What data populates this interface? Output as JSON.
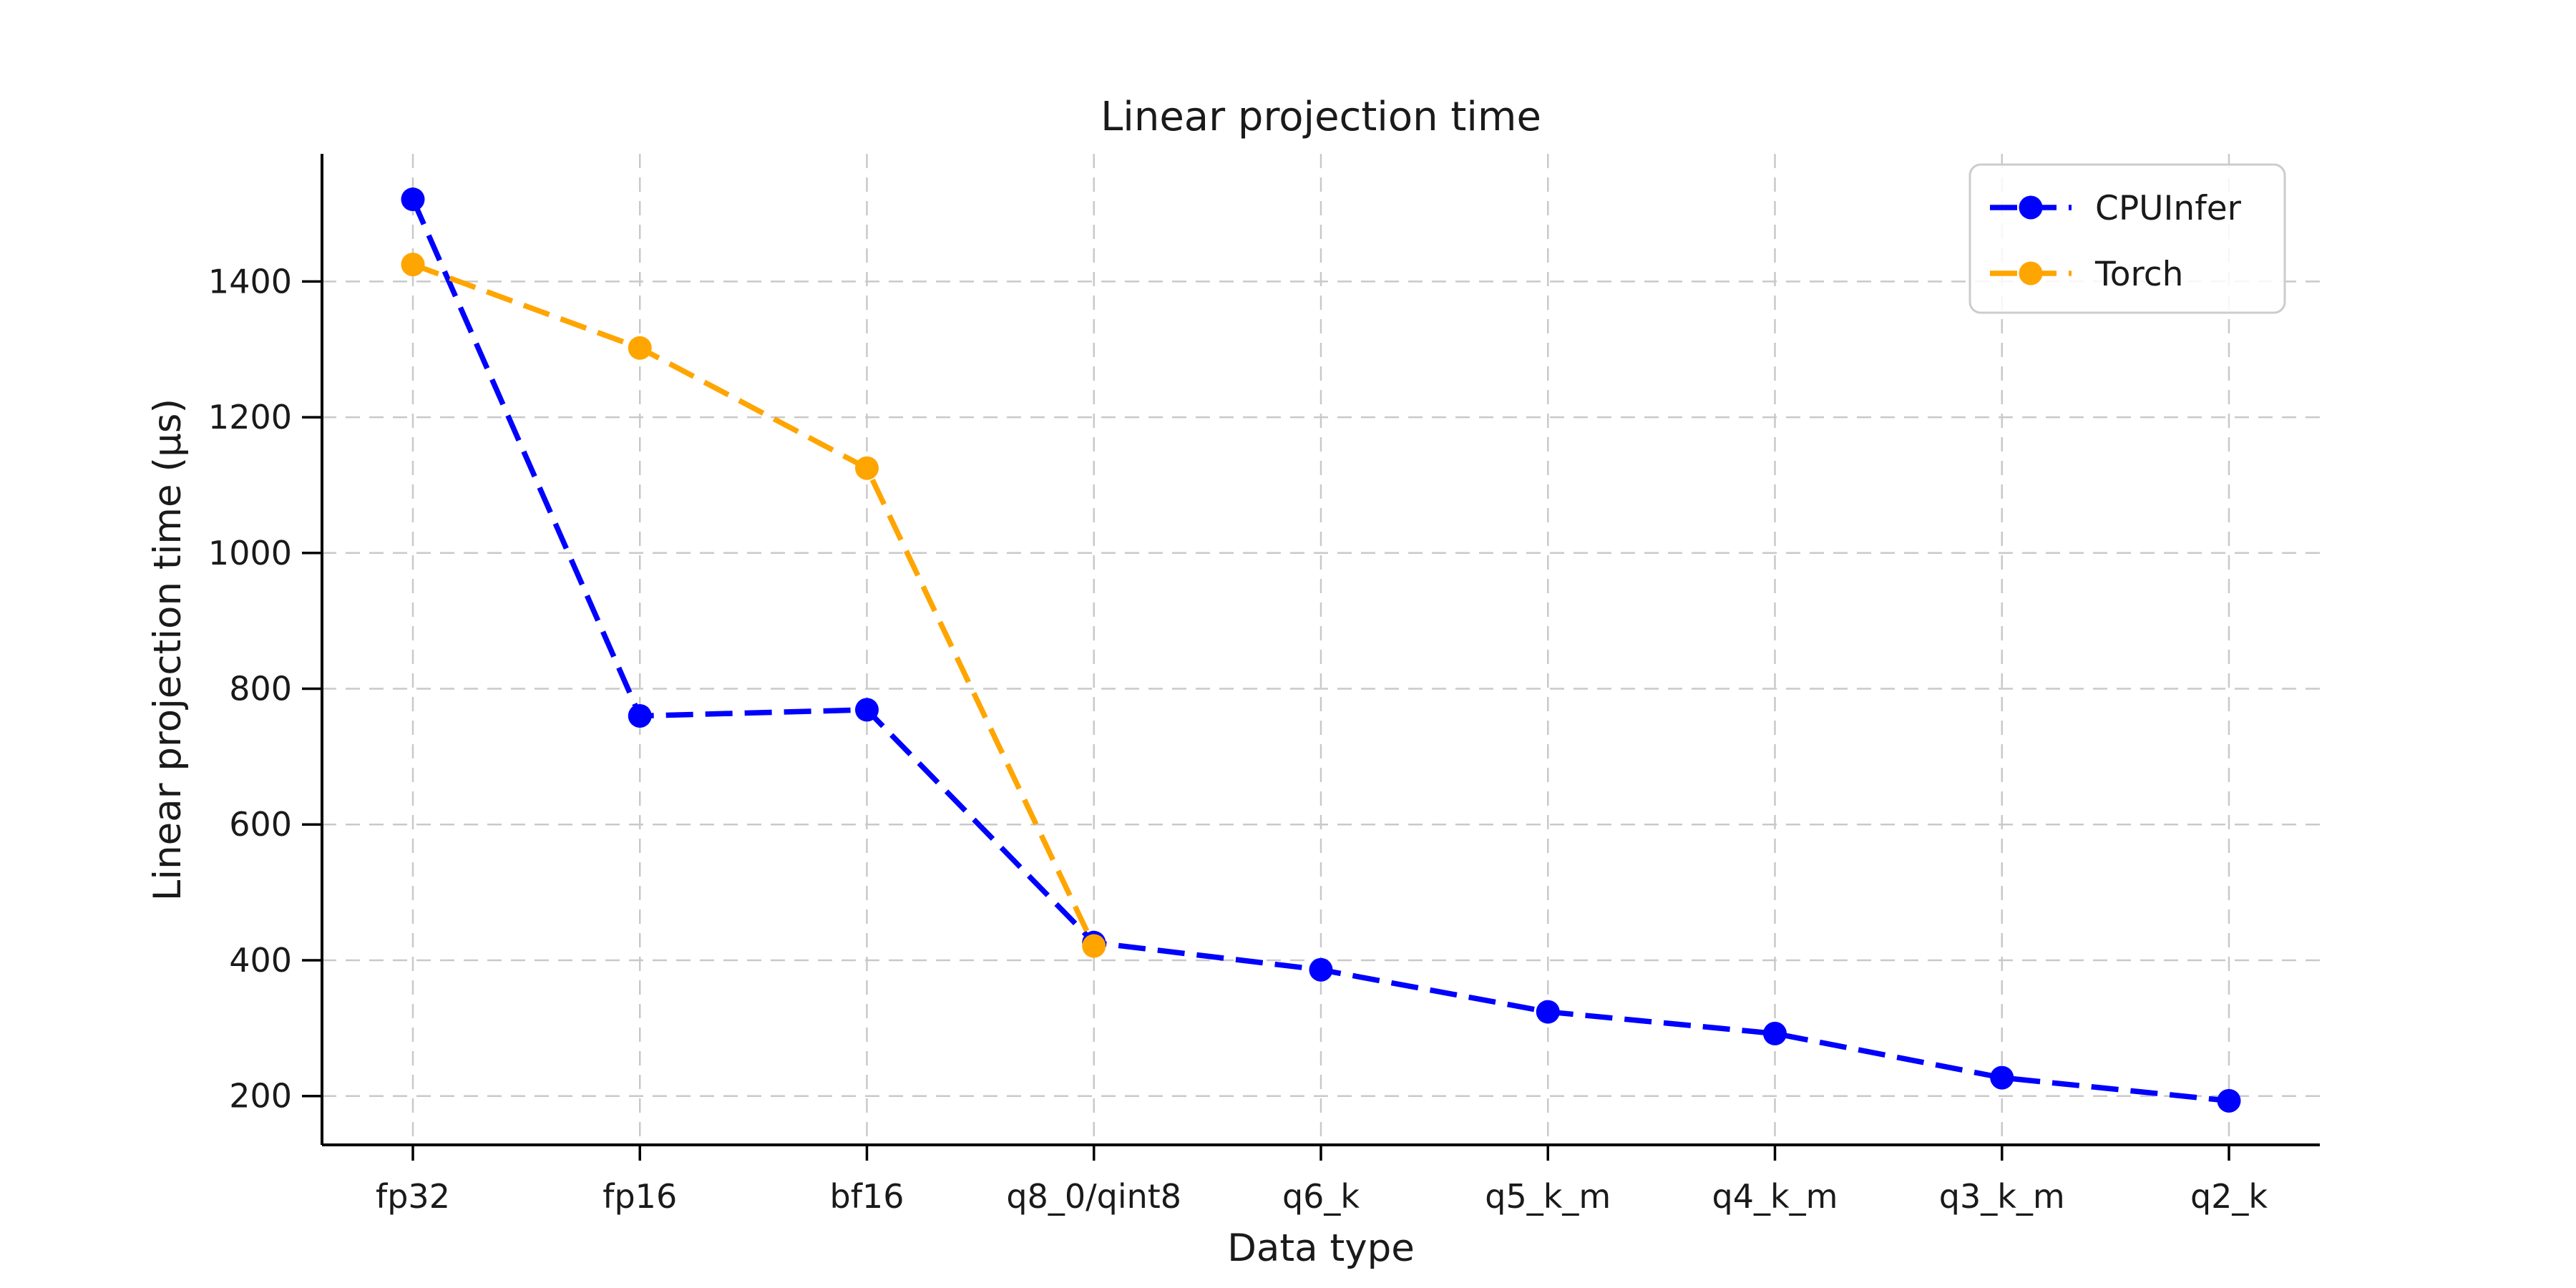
{
  "chart_data": {
    "type": "line",
    "title": "Linear projection time",
    "xlabel": "Data type",
    "ylabel": "Linear projection time (µs)",
    "categories": [
      "fp32",
      "fp16",
      "bf16",
      "q8_0/qint8",
      "q6_k",
      "q5_k_m",
      "q4_k_m",
      "q3_k_m",
      "q2_k"
    ],
    "series": [
      {
        "name": "CPUInfer",
        "color": "#0000ff",
        "values": [
          1521,
          760,
          769,
          426,
          386,
          324,
          292,
          227,
          193
        ]
      },
      {
        "name": "Torch",
        "color": "#ffa500",
        "values": [
          1425,
          1302,
          1125,
          421
        ]
      }
    ],
    "yticks": [
      200,
      400,
      600,
      800,
      1000,
      1200,
      1400
    ],
    "ylim": [
      128,
      1588
    ],
    "grid": true,
    "grid_linestyle": "dashed",
    "line_linestyle": "dashed",
    "marker": "circle",
    "legend_position": "upper right",
    "legend_entries": [
      "CPUInfer",
      "Torch"
    ],
    "colors": {
      "grid": "#c9c9c9",
      "spine": "#000000",
      "text": "#1a1a1a",
      "background": "#ffffff",
      "legend_border": "#cccccc"
    }
  }
}
